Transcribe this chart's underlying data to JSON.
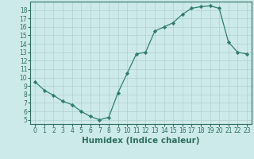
{
  "x": [
    0,
    1,
    2,
    3,
    4,
    5,
    6,
    7,
    8,
    9,
    10,
    11,
    12,
    13,
    14,
    15,
    16,
    17,
    18,
    19,
    20,
    21,
    22,
    23
  ],
  "y": [
    9.5,
    8.5,
    7.9,
    7.2,
    6.8,
    6.0,
    5.4,
    5.0,
    5.3,
    8.2,
    10.5,
    12.8,
    13.0,
    15.5,
    16.0,
    16.5,
    17.5,
    18.2,
    18.4,
    18.5,
    18.2,
    14.2,
    13.0,
    12.8
  ],
  "line_color": "#2e7d6e",
  "marker": "D",
  "marker_size": 2.2,
  "bg_color": "#cdeaea",
  "grid_color": "#b0d0d0",
  "xlabel": "Humidex (Indice chaleur)",
  "xlim": [
    -0.5,
    23.5
  ],
  "ylim": [
    4.5,
    19.0
  ],
  "yticks": [
    5,
    6,
    7,
    8,
    9,
    10,
    11,
    12,
    13,
    14,
    15,
    16,
    17,
    18
  ],
  "xticks": [
    0,
    1,
    2,
    3,
    4,
    5,
    6,
    7,
    8,
    9,
    10,
    11,
    12,
    13,
    14,
    15,
    16,
    17,
    18,
    19,
    20,
    21,
    22,
    23
  ],
  "tick_color": "#2e6e60",
  "tick_fontsize": 5.5,
  "xlabel_fontsize": 7.5,
  "xlabel_fontweight": "bold",
  "linewidth": 0.9
}
